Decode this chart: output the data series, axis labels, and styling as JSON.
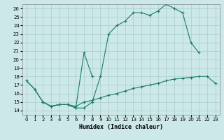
{
  "xlabel": "Humidex (Indice chaleur)",
  "bg_color": "#cce8e8",
  "grid_color": "#aacccc",
  "line_color": "#1a7a6a",
  "xlim": [
    -0.5,
    23.5
  ],
  "ylim": [
    13.5,
    26.5
  ],
  "xticks": [
    0,
    1,
    2,
    3,
    4,
    5,
    6,
    7,
    8,
    9,
    10,
    11,
    12,
    13,
    14,
    15,
    16,
    17,
    18,
    19,
    20,
    21,
    22,
    23
  ],
  "yticks": [
    14,
    15,
    16,
    17,
    18,
    19,
    20,
    21,
    22,
    23,
    24,
    25,
    26
  ],
  "line1_x": [
    0,
    1,
    2,
    3,
    4,
    5,
    6,
    7,
    8,
    9,
    10,
    11,
    12,
    13,
    14,
    15,
    16,
    17,
    18,
    19,
    20,
    21
  ],
  "line1_y": [
    17.5,
    16.5,
    15.0,
    14.5,
    14.7,
    14.7,
    14.3,
    14.3,
    15.0,
    18.0,
    23.0,
    24.0,
    24.5,
    25.5,
    25.5,
    25.2,
    25.7,
    26.5,
    26.0,
    25.5,
    22.0,
    20.8
  ],
  "line2_x": [
    0,
    1,
    2,
    3,
    4,
    5,
    6,
    7,
    8
  ],
  "line2_y": [
    17.5,
    16.5,
    15.0,
    14.5,
    14.7,
    14.7,
    14.3,
    20.8,
    18.0
  ],
  "line3_x": [
    2,
    3,
    4,
    5,
    6,
    7,
    8,
    9,
    10,
    11,
    12,
    13,
    14,
    15,
    16,
    17,
    18,
    19,
    20,
    21,
    22,
    23
  ],
  "line3_y": [
    15.0,
    14.5,
    14.7,
    14.7,
    14.5,
    15.0,
    15.2,
    15.5,
    15.8,
    16.0,
    16.3,
    16.6,
    16.8,
    17.0,
    17.2,
    17.5,
    17.7,
    17.8,
    17.9,
    18.0,
    18.0,
    17.2
  ]
}
